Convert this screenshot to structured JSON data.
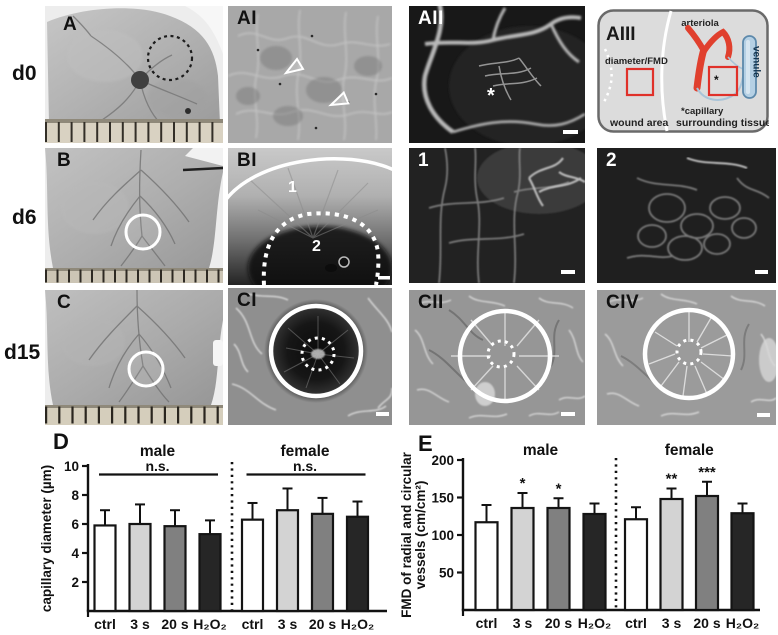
{
  "figure": {
    "row_labels": [
      "d0",
      "d6",
      "d15"
    ],
    "panels": {
      "A": "A",
      "AI": "AI",
      "AII": "AII",
      "AIII": "AIII",
      "B": "B",
      "BI": "BI",
      "one": "1",
      "two": "2",
      "C": "C",
      "CI": "CI",
      "CII": "CII",
      "CIV": "CIV"
    },
    "aii": {
      "asterisk": "*"
    },
    "bi": {
      "region1": "1",
      "region2": "2"
    },
    "aiii": {
      "arteriola_label": "arteriola",
      "diameter_label": "diameter/FMD",
      "venule_label": "venule",
      "capillary_label": "*capillary",
      "capillary_star": "*",
      "wound_area_label": "wound area",
      "surrounding_label": "surrounding tissue",
      "arteriola_color": "#e0402e",
      "venule_color": "#b5d0e4",
      "box_color": "#e0312a"
    }
  },
  "chart_data": [
    {
      "id": "D",
      "type": "bar",
      "panel_label": "D",
      "ylabel": "capillary diameter (µm)",
      "ylim": [
        0,
        10
      ],
      "yticks": [
        2,
        4,
        6,
        8,
        10
      ],
      "categories": [
        "ctrl",
        "3 s",
        "20 s",
        "H₂O₂"
      ],
      "bar_colors": [
        "#ffffff",
        "#d3d3d3",
        "#808080",
        "#262626"
      ],
      "legend_position": "none",
      "grid": false,
      "groups": [
        {
          "label": "male",
          "ns": "n.s.",
          "values": [
            5.9,
            6.0,
            5.85,
            5.3
          ],
          "errors": [
            1.05,
            1.35,
            1.1,
            0.95
          ],
          "sig": [
            "",
            "",
            "",
            ""
          ]
        },
        {
          "label": "female",
          "ns": "n.s.",
          "values": [
            6.3,
            6.95,
            6.7,
            6.5
          ],
          "errors": [
            1.15,
            1.5,
            1.1,
            1.05
          ],
          "sig": [
            "",
            "",
            "",
            ""
          ]
        }
      ]
    },
    {
      "id": "E",
      "type": "bar",
      "panel_label": "E",
      "ylabel": "FMD of radial and circular\nvessels (cm/cm²)",
      "ylim": [
        0,
        200
      ],
      "yticks": [
        50,
        100,
        150,
        200
      ],
      "categories": [
        "ctrl",
        "3 s",
        "20 s",
        "H₂O₂"
      ],
      "bar_colors": [
        "#ffffff",
        "#d3d3d3",
        "#808080",
        "#262626"
      ],
      "legend_position": "none",
      "grid": false,
      "groups": [
        {
          "label": "male",
          "ns": "",
          "values": [
            117,
            136,
            136,
            128
          ],
          "errors": [
            23,
            20,
            13,
            14
          ],
          "sig": [
            "",
            "*",
            "*",
            ""
          ]
        },
        {
          "label": "female",
          "ns": "",
          "values": [
            121,
            148,
            152,
            129
          ],
          "errors": [
            16,
            14,
            19,
            13
          ],
          "sig": [
            "",
            "**",
            "***",
            ""
          ]
        }
      ]
    }
  ]
}
